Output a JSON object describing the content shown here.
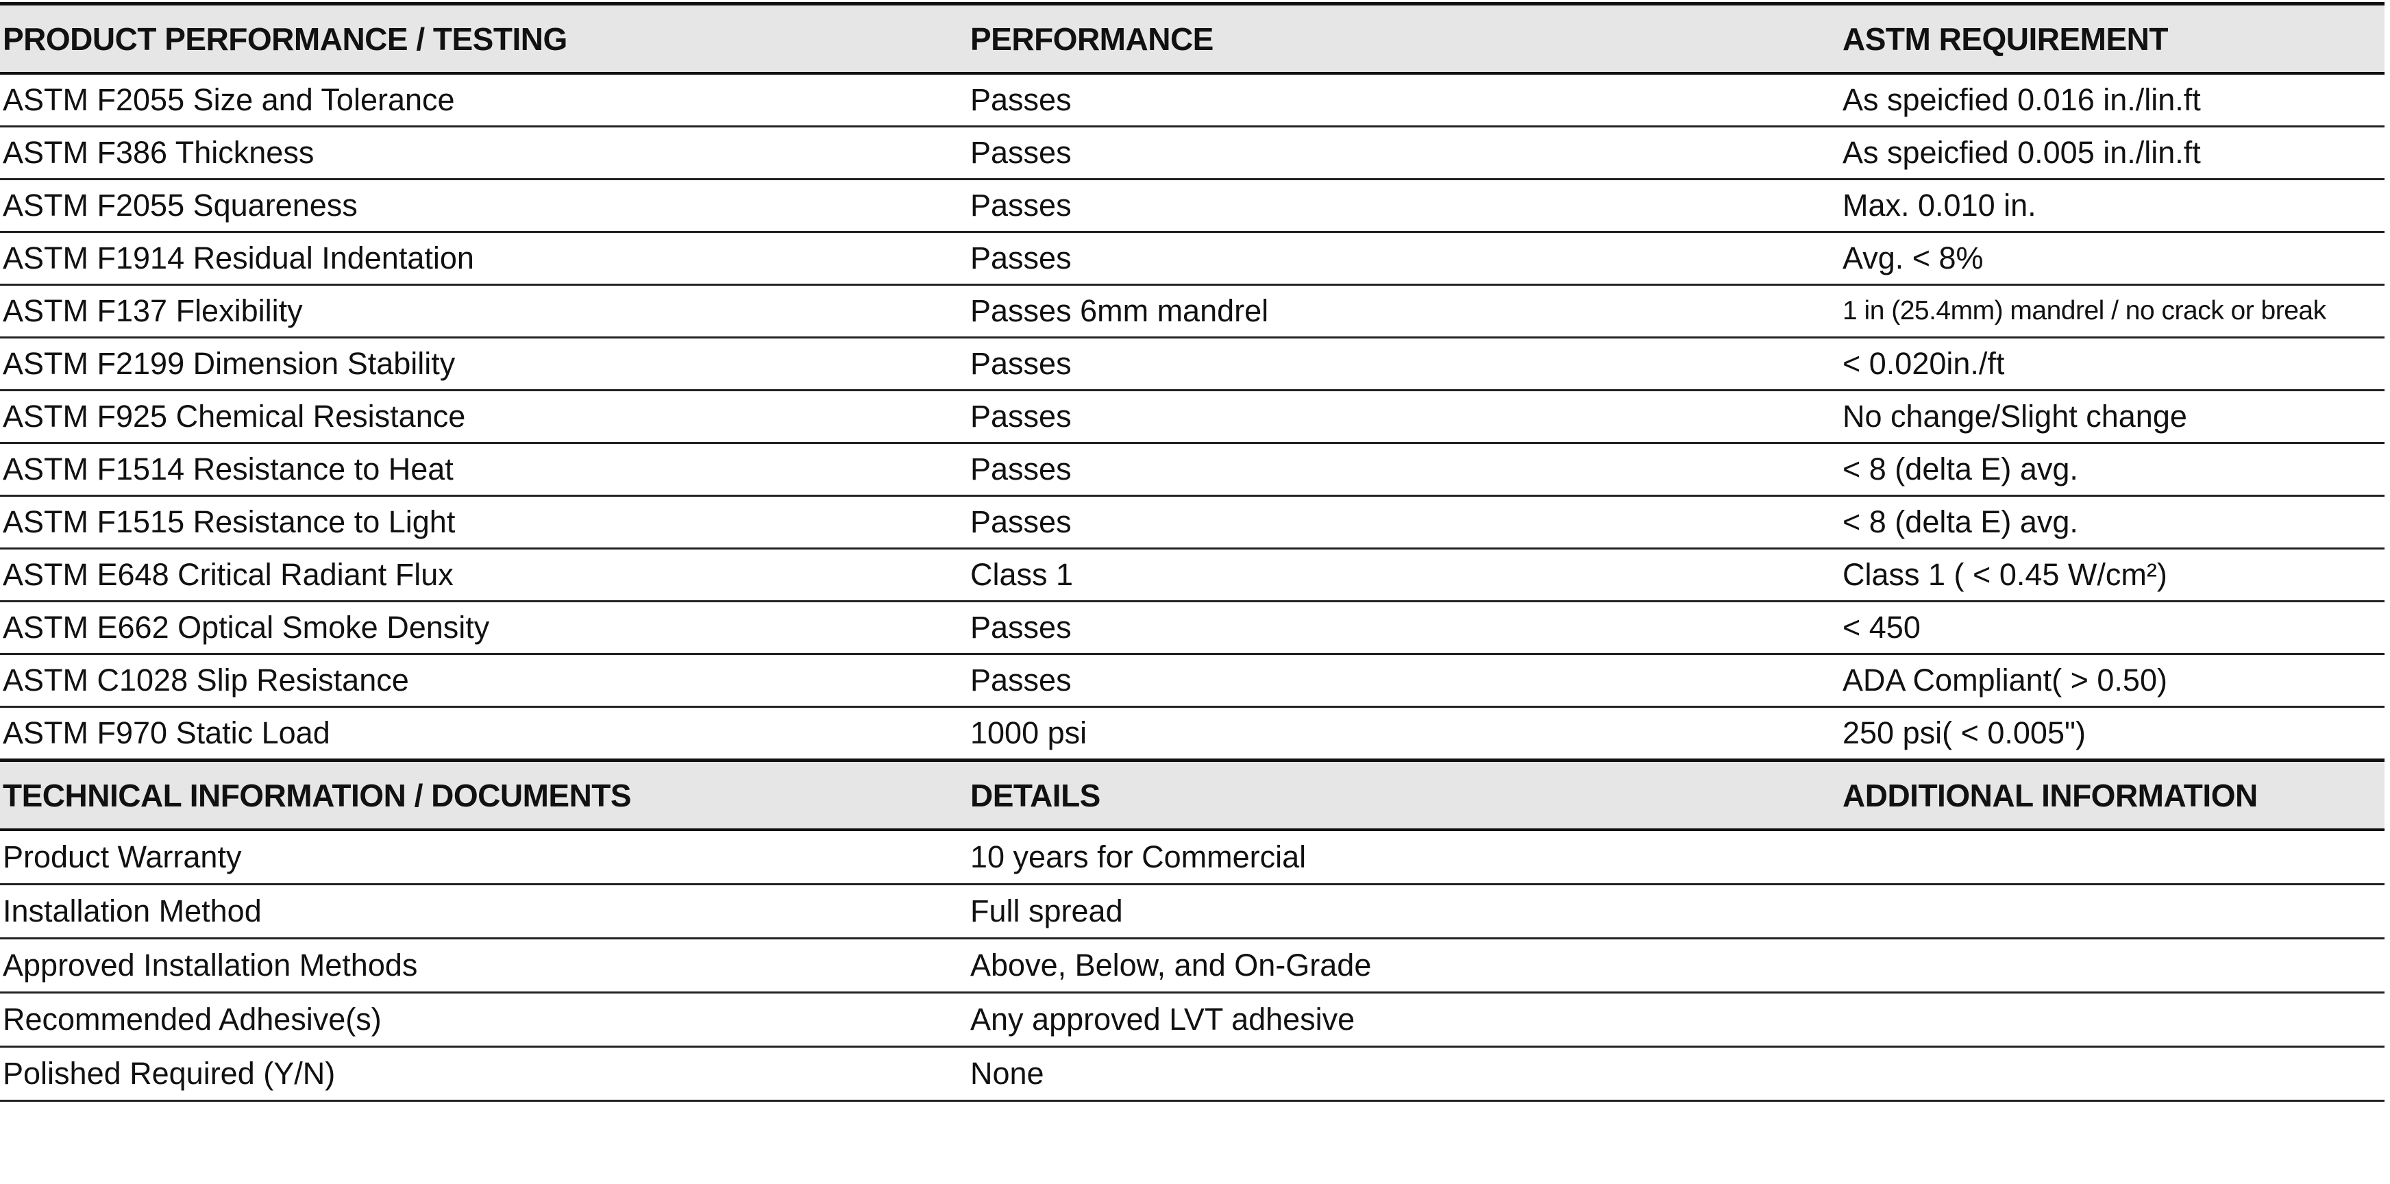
{
  "performance_table": {
    "headers": [
      "PRODUCT PERFORMANCE / TESTING",
      "PERFORMANCE",
      "ASTM REQUIREMENT"
    ],
    "rows": [
      [
        "ASTM F2055 Size and Tolerance",
        "Passes",
        "As speicfied 0.016 in./lin.ft"
      ],
      [
        "ASTM F386 Thickness",
        "Passes",
        "As speicfied 0.005 in./lin.ft"
      ],
      [
        "ASTM F2055 Squareness",
        "Passes",
        "Max. 0.010 in."
      ],
      [
        "ASTM F1914 Residual Indentation",
        "Passes",
        "Avg. <  8%"
      ],
      [
        "ASTM F137 Flexibility",
        "Passes 6mm mandrel",
        "1 in (25.4mm) mandrel / no crack or break"
      ],
      [
        "ASTM F2199 Dimension Stability",
        "Passes",
        "< 0.020in./ft"
      ],
      [
        "ASTM F925 Chemical Resistance",
        "Passes",
        "No change/Slight change"
      ],
      [
        "ASTM F1514 Resistance to Heat",
        "Passes",
        "< 8 (delta E) avg."
      ],
      [
        "ASTM F1515 Resistance to Light",
        "Passes",
        "< 8 (delta E) avg."
      ],
      [
        "ASTM E648 Critical Radiant Flux",
        "Class 1",
        "Class 1 ( < 0.45 W/cm²)"
      ],
      [
        "ASTM E662 Optical Smoke Density",
        "Passes",
        "< 450"
      ],
      [
        "ASTM C1028 Slip Resistance",
        "Passes",
        "ADA Compliant( > 0.50)"
      ],
      [
        "ASTM F970 Static Load",
        "1000 psi",
        "250 psi( < 0.005\")"
      ]
    ]
  },
  "technical_table": {
    "headers": [
      "TECHNICAL INFORMATION / DOCUMENTS",
      "DETAILS",
      "ADDITIONAL INFORMATION"
    ],
    "rows": [
      [
        "Product Warranty",
        "10 years for Commercial",
        ""
      ],
      [
        "Installation Method",
        "Full spread",
        ""
      ],
      [
        "Approved Installation Methods",
        "Above, Below, and On-Grade",
        ""
      ],
      [
        "Recommended Adhesive(s)",
        "Any approved LVT adhesive",
        ""
      ],
      [
        "Polished Required (Y/N)",
        "None",
        ""
      ]
    ]
  },
  "colors": {
    "header_bg": "#e6e6e6",
    "rule": "#111111"
  }
}
